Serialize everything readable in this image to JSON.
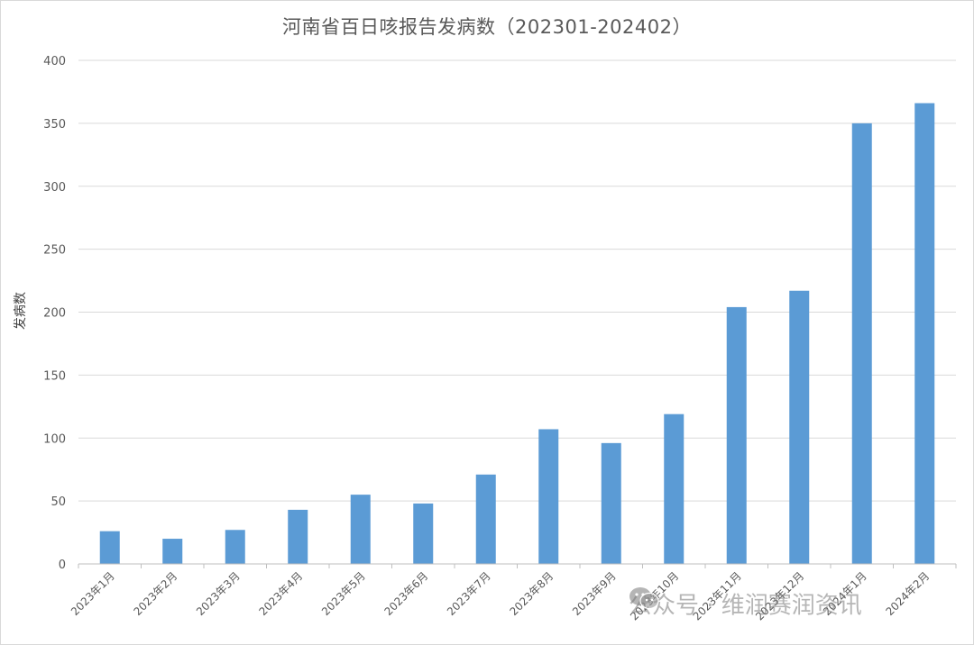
{
  "chart_data": {
    "type": "bar",
    "title": "河南省百日咳报告发病数（202301-202402）",
    "ylabel": "发病数",
    "xlabel": "",
    "ylim": [
      0,
      400
    ],
    "yticks": [
      0,
      50,
      100,
      150,
      200,
      250,
      300,
      350,
      400
    ],
    "grid": true,
    "legend": "none",
    "bar_color": "#5b9bd5",
    "categories": [
      "2023年1月",
      "2023年2月",
      "2023年3月",
      "2023年4月",
      "2023年5月",
      "2023年6月",
      "2023年7月",
      "2023年8月",
      "2023年9月",
      "2023年10月",
      "2023年11月",
      "2023年12月",
      "2024年1月",
      "2024年2月"
    ],
    "values": [
      26,
      20,
      27,
      43,
      55,
      48,
      71,
      107,
      96,
      119,
      204,
      217,
      350,
      366
    ]
  },
  "watermark": {
    "text": "公众号 · 维润赛润资讯",
    "icon": "wechat-icon"
  }
}
